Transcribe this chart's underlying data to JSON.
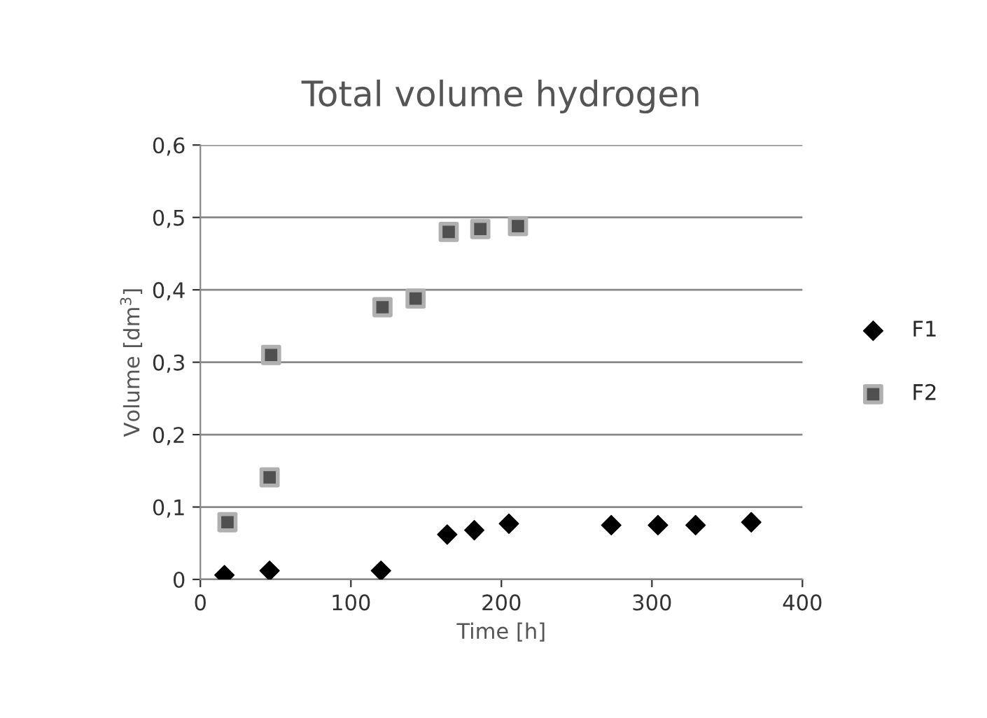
{
  "chart_data": {
    "type": "scatter",
    "title": "Total volume hydrogen",
    "xlabel": "Time [h]",
    "ylabel": "Volume [dm$^{3}$]",
    "xlim": [
      0,
      400
    ],
    "xticks": [
      0,
      100,
      200,
      300,
      400
    ],
    "ylim": [
      0,
      0.6
    ],
    "yticks": [
      0,
      {
        "value": 0.1,
        "label": "0,1"
      },
      {
        "value": 0.2,
        "label": "0,2"
      },
      {
        "value": 0.3,
        "label": "0,3"
      },
      {
        "value": 0.4,
        "label": "0,4"
      },
      {
        "value": 0.5,
        "label": "0,5"
      },
      {
        "value": 0.6,
        "label": "0,6"
      }
    ],
    "grid": "y",
    "legend": "right",
    "series": [
      {
        "name": "F1",
        "color": "#000000",
        "marker": "diamond",
        "x": [
          16,
          46,
          120,
          164,
          182,
          205,
          273,
          304,
          329,
          366
        ],
        "values": [
          0.006,
          0.012,
          0.012,
          0.062,
          0.068,
          0.077,
          0.075,
          0.075,
          0.075,
          0.079
        ]
      },
      {
        "name": "F2",
        "color": "#505050",
        "marker": "square",
        "x": [
          18,
          46,
          47,
          121,
          143,
          165,
          186,
          211
        ],
        "values": [
          0.079,
          0.141,
          0.31,
          0.376,
          0.388,
          0.48,
          0.484,
          0.488
        ]
      }
    ]
  }
}
